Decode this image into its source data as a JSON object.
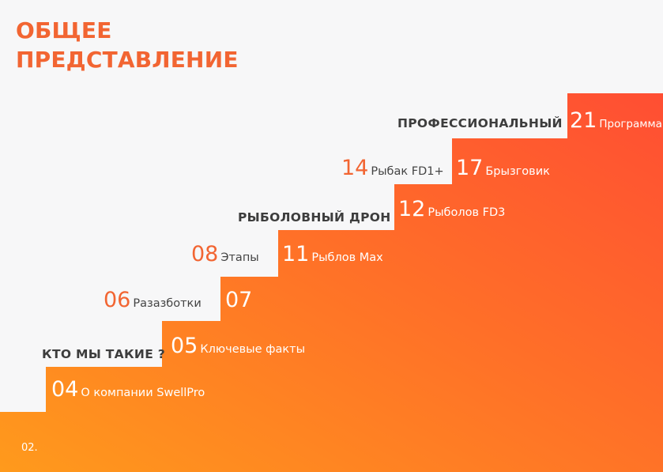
{
  "title": {
    "line1": "ОБЩЕЕ",
    "line2": "ПРЕДСТАВЛЕНИЕ"
  },
  "sections": {
    "who": "КТО МЫ ТАКИЕ ?",
    "drone": "РЫБОЛОВНЫЙ ДРОН",
    "pro": "ПРОФЕССИОНАЛЬНЫЙ"
  },
  "items": [
    {
      "num": "04",
      "label": "О компании SwellPro"
    },
    {
      "num": "05",
      "label": "Ключевые факты"
    },
    {
      "num": "06",
      "label": "Разазботки"
    },
    {
      "num": "07",
      "label": ""
    },
    {
      "num": "08",
      "label": "Этапы"
    },
    {
      "num": "11",
      "label": "Рыблов Max"
    },
    {
      "num": "12",
      "label": "Рыболов FD3"
    },
    {
      "num": "14",
      "label": "Рыбак FD1+"
    },
    {
      "num": "17",
      "label": "Брызговик"
    },
    {
      "num": "21",
      "label": "Программа"
    }
  ],
  "page_number": "02.",
  "colors": {
    "accent": "#f26532",
    "gradient_start": "#ff9a1c",
    "gradient_end": "#ff5a2e",
    "background": "#f7f7f8"
  }
}
